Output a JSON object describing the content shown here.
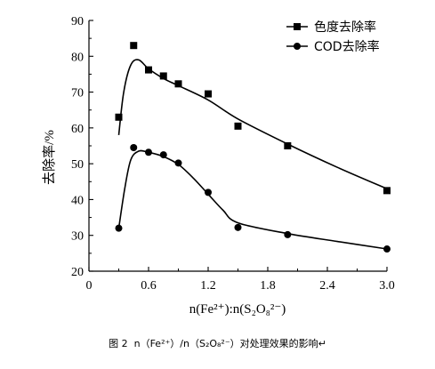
{
  "chart_data": {
    "type": "line",
    "xlabel": "n(Fe²⁺):n(S₂O₈²⁻)",
    "ylabel": "去除率/%",
    "xlim": [
      0,
      3.0
    ],
    "ylim": [
      20,
      90
    ],
    "x_ticks": [
      "0",
      "0.6",
      "1.2",
      "1.8",
      "2.4",
      "3.0"
    ],
    "y_ticks": [
      "20",
      "30",
      "40",
      "50",
      "60",
      "70",
      "80",
      "90"
    ],
    "grid": false,
    "legend_position": "top-right",
    "series": [
      {
        "name": "色度去除率",
        "marker": "square",
        "x": [
          0.3,
          0.45,
          0.6,
          0.75,
          0.9,
          1.2,
          1.5,
          2.0,
          3.0
        ],
        "y": [
          63,
          83,
          76.2,
          74.5,
          72.3,
          69.5,
          60.5,
          55,
          42.5
        ],
        "curve": [
          [
            0.3,
            58
          ],
          [
            0.35,
            70
          ],
          [
            0.42,
            77.5
          ],
          [
            0.5,
            79
          ],
          [
            0.6,
            76.5
          ],
          [
            0.75,
            73.8
          ],
          [
            0.9,
            71.8
          ],
          [
            1.2,
            67.8
          ],
          [
            1.5,
            62.5
          ],
          [
            2.0,
            55.5
          ],
          [
            2.5,
            49
          ],
          [
            3.0,
            43
          ]
        ]
      },
      {
        "name": "COD去除率",
        "marker": "circle",
        "x": [
          0.3,
          0.45,
          0.6,
          0.75,
          0.9,
          1.2,
          1.5,
          2.0,
          3.0
        ],
        "y": [
          32,
          54.5,
          53.2,
          52.5,
          50.2,
          42,
          32.2,
          30.2,
          26.2
        ],
        "curve": [
          [
            0.3,
            32
          ],
          [
            0.36,
            43
          ],
          [
            0.42,
            51
          ],
          [
            0.5,
            53.5
          ],
          [
            0.6,
            53.2
          ],
          [
            0.75,
            52
          ],
          [
            0.9,
            49.8
          ],
          [
            1.05,
            46
          ],
          [
            1.2,
            41.5
          ],
          [
            1.35,
            37
          ],
          [
            1.5,
            33.5
          ],
          [
            2.0,
            30.5
          ],
          [
            2.5,
            28.3
          ],
          [
            3.0,
            26.2
          ]
        ]
      }
    ]
  },
  "caption": "图 2  n（Fe²⁺）/n（S₂O₈²⁻）对处理效果的影响↵"
}
